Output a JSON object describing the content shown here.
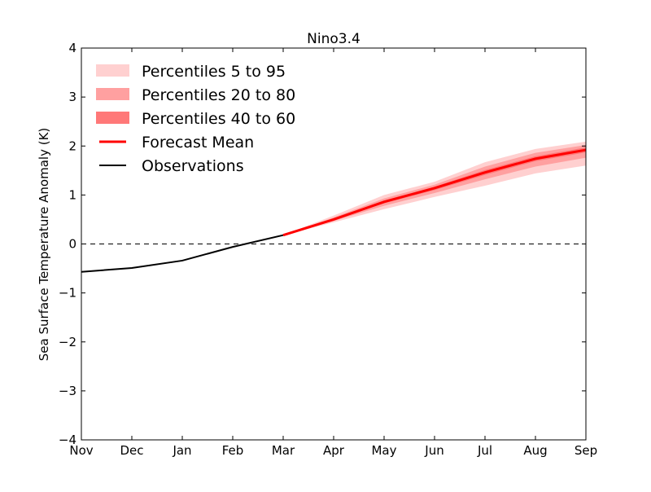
{
  "chart_data": {
    "type": "line",
    "title": "Nino3.4",
    "xlabel": "",
    "ylabel": "Sea Surface Temperature Anomaly (K)",
    "categories": [
      "Nov",
      "Dec",
      "Jan",
      "Feb",
      "Mar",
      "Apr",
      "May",
      "Jun",
      "Jul",
      "Aug",
      "Sep"
    ],
    "ylim": [
      -4,
      4
    ],
    "yticks": [
      "4",
      "3",
      "2",
      "1",
      "0",
      "−1",
      "−2",
      "−3",
      "−4"
    ],
    "ytick_values": [
      4,
      3,
      2,
      1,
      0,
      -1,
      -2,
      -3,
      -4
    ],
    "reference_line": {
      "y": 0,
      "style": "dashed"
    },
    "legend_placement": "upper-left",
    "observations": {
      "name": "Observations",
      "color": "#000000",
      "x": [
        "Nov",
        "Dec",
        "Jan",
        "Feb",
        "Mar"
      ],
      "values": [
        -0.57,
        -0.49,
        -0.34,
        -0.06,
        0.18
      ]
    },
    "forecast": {
      "x": [
        "Mar",
        "Apr",
        "May",
        "Jun",
        "Jul",
        "Aug",
        "Sep"
      ],
      "mean": {
        "name": "Forecast Mean",
        "color": "#ff0000",
        "values": [
          0.18,
          0.5,
          0.86,
          1.14,
          1.46,
          1.74,
          1.92
        ]
      },
      "bands": [
        {
          "name": "Percentiles 5 to 95",
          "color": "#ffd0d0",
          "low": [
            0.18,
            0.44,
            0.71,
            0.96,
            1.19,
            1.44,
            1.6
          ],
          "high": [
            0.18,
            0.58,
            1.0,
            1.27,
            1.67,
            1.94,
            2.09
          ]
        },
        {
          "name": "Percentiles 20 to 80",
          "color": "#ffa0a0",
          "low": [
            0.18,
            0.47,
            0.78,
            1.04,
            1.32,
            1.58,
            1.76
          ],
          "high": [
            0.18,
            0.54,
            0.93,
            1.21,
            1.58,
            1.86,
            2.02
          ]
        },
        {
          "name": "Percentiles 40 to 60",
          "color": "#ff7878",
          "low": [
            0.18,
            0.49,
            0.83,
            1.1,
            1.41,
            1.69,
            1.87
          ],
          "high": [
            0.18,
            0.52,
            0.89,
            1.17,
            1.51,
            1.79,
            1.97
          ]
        }
      ]
    }
  }
}
